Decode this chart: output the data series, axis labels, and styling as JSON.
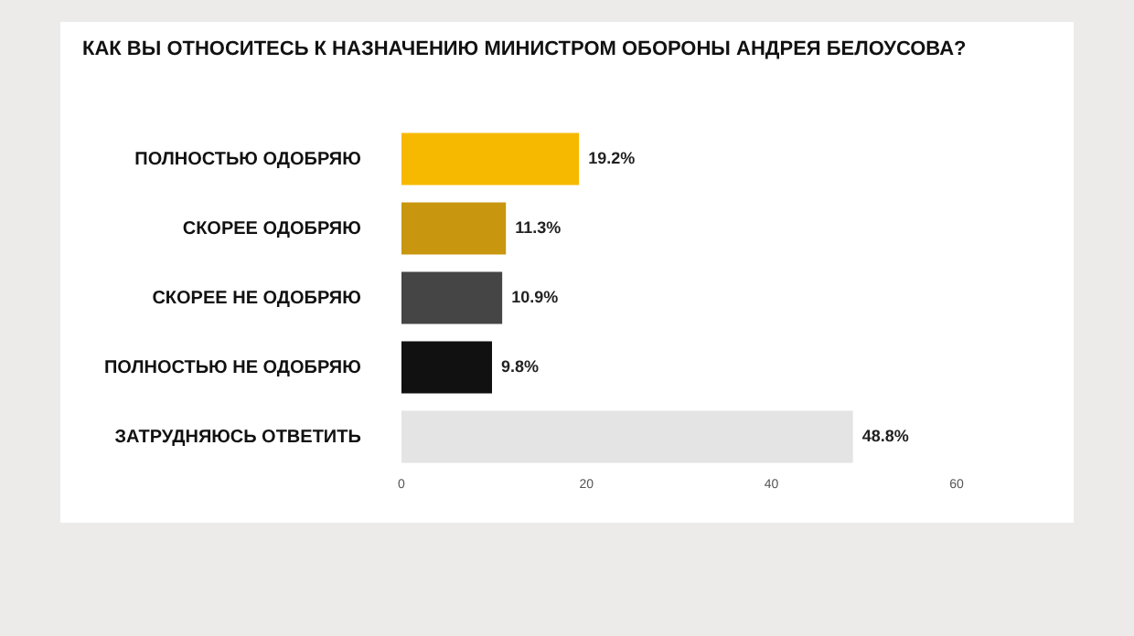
{
  "chart_data": {
    "type": "bar",
    "orientation": "horizontal",
    "title": "КАК ВЫ ОТНОСИТЕСЬ К НАЗНАЧЕНИЮ МИНИСТРОМ ОБОРОНЫ АНДРЕЯ БЕЛОУСОВА?",
    "categories": [
      "ПОЛНОСТЬЮ ОДОБРЯЮ",
      "СКОРЕЕ ОДОБРЯЮ",
      "СКОРЕЕ НЕ ОДОБРЯЮ",
      "ПОЛНОСТЬЮ НЕ ОДОБРЯЮ",
      "ЗАТРУДНЯЮСЬ ОТВЕТИТЬ"
    ],
    "values": [
      19.2,
      11.3,
      10.9,
      9.8,
      48.8
    ],
    "colors": [
      "#f7b900",
      "#c8960f",
      "#454545",
      "#111111",
      "#e4e4e4"
    ],
    "value_labels": [
      "19.2%",
      "11.3%",
      "10.9%",
      "9.8%",
      "48.8%"
    ],
    "xlim": [
      0,
      60
    ],
    "xticks": [
      0,
      20,
      40,
      60
    ],
    "grid": false,
    "legend": false
  }
}
